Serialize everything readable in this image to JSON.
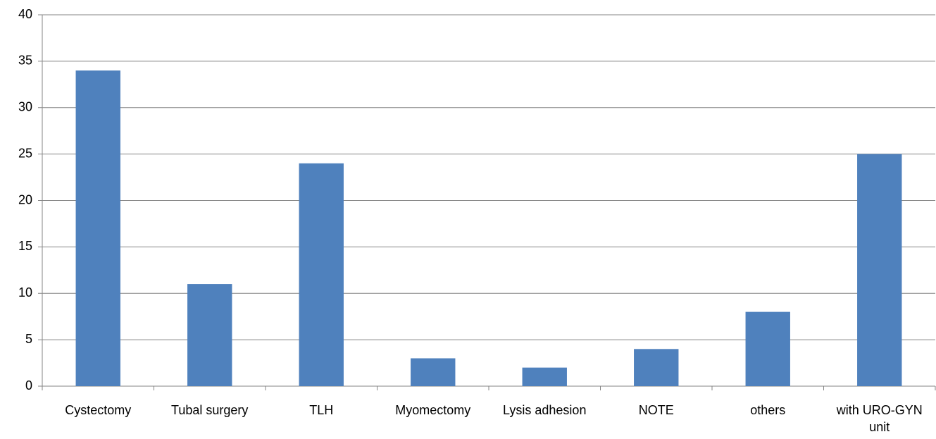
{
  "chart_data": {
    "type": "bar",
    "categories": [
      "Cystectomy",
      "Tubal surgery",
      "TLH",
      "Myomectomy",
      "Lysis adhesion",
      "NOTE",
      "others",
      "with URO-GYN unit"
    ],
    "values": [
      34,
      11,
      24,
      3,
      2,
      4,
      8,
      25
    ],
    "color": "#4f81bd",
    "ylim": [
      0,
      40
    ],
    "yticks": [
      0,
      5,
      10,
      15,
      20,
      25,
      30,
      35,
      40
    ],
    "grid": true
  }
}
